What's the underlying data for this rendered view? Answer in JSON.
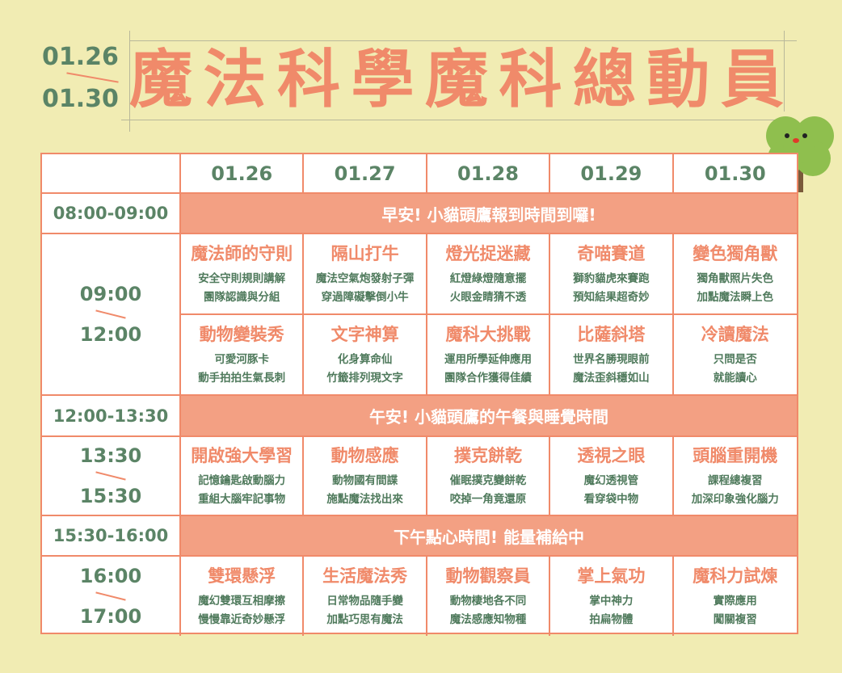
{
  "header": {
    "date_start": "01.26",
    "date_end": "01.30",
    "title_chars": [
      "魔",
      "法",
      "科",
      "學",
      "魔",
      "科",
      "總",
      "動",
      "員"
    ]
  },
  "colors": {
    "accent": "#f08a6a",
    "green": "#5b8466",
    "band": "#f3a083",
    "background": "#f1ecb3"
  },
  "table": {
    "days": [
      "01.26",
      "01.27",
      "01.28",
      "01.29",
      "01.30"
    ],
    "bands": [
      {
        "time": "08:00-09:00",
        "text": "早安! 小貓頭鷹報到時間到囉!"
      },
      {
        "time": "12:00-13:30",
        "text": "午安! 小貓頭鷹的午餐與睡覺時間"
      },
      {
        "time": "15:30-16:00",
        "text": "下午點心時間! 能量補給中"
      }
    ],
    "sessions": [
      {
        "start": "09:00",
        "end": "12:00",
        "rows": [
          [
            {
              "name": "魔法師的守則",
              "l1": "安全守則規則講解",
              "l2": "團隊認識與分組"
            },
            {
              "name": "隔山打牛",
              "l1": "魔法空氣炮發射子彈",
              "l2": "穿過障礙擊倒小牛"
            },
            {
              "name": "燈光捉迷藏",
              "l1": "紅燈綠燈隨意擺",
              "l2": "火眼金睛猜不透"
            },
            {
              "name": "奇喵賽道",
              "l1": "獅豹貓虎來賽跑",
              "l2": "預知結果超奇妙"
            },
            {
              "name": "變色獨角獸",
              "l1": "獨角獸照片失色",
              "l2": "加點魔法瞬上色"
            }
          ],
          [
            {
              "name": "動物變裝秀",
              "l1": "可愛河豚卡",
              "l2": "動手拍拍生氣長刺"
            },
            {
              "name": "文字神算",
              "l1": "化身算命仙",
              "l2": "竹籤排列現文字"
            },
            {
              "name": "魔科大挑戰",
              "l1": "運用所學延伸應用",
              "l2": "團隊合作獲得佳績"
            },
            {
              "name": "比薩斜塔",
              "l1": "世界名勝現眼前",
              "l2": "魔法歪斜穩如山"
            },
            {
              "name": "冷讀魔法",
              "l1": "只問是否",
              "l2": "就能讀心"
            }
          ]
        ]
      },
      {
        "start": "13:30",
        "end": "15:30",
        "rows": [
          [
            {
              "name": "開啟強大學習",
              "l1": "記憶鑰匙啟動腦力",
              "l2": "重組大腦牢記事物"
            },
            {
              "name": "動物感應",
              "l1": "動物國有間諜",
              "l2": "施點魔法找出來"
            },
            {
              "name": "撲克餅乾",
              "l1": "催眠撲克變餅乾",
              "l2": "咬掉一角竟還原"
            },
            {
              "name": "透視之眼",
              "l1": "魔幻透視管",
              "l2": "看穿袋中物"
            },
            {
              "name": "頭腦重開機",
              "l1": "課程總複習",
              "l2": "加深印象強化腦力"
            }
          ]
        ]
      },
      {
        "start": "16:00",
        "end": "17:00",
        "rows": [
          [
            {
              "name": "雙環懸浮",
              "l1": "魔幻雙環互相摩擦",
              "l2": "慢慢靠近奇妙懸浮"
            },
            {
              "name": "生活魔法秀",
              "l1": "日常物品隨手變",
              "l2": "加點巧思有魔法"
            },
            {
              "name": "動物觀察員",
              "l1": "動物棲地各不同",
              "l2": "魔法感應知物種"
            },
            {
              "name": "掌上氣功",
              "l1": "掌中神力",
              "l2": "拍扁物體"
            },
            {
              "name": "魔科力試煉",
              "l1": "實際應用",
              "l2": "闖關複習"
            }
          ]
        ]
      }
    ]
  }
}
